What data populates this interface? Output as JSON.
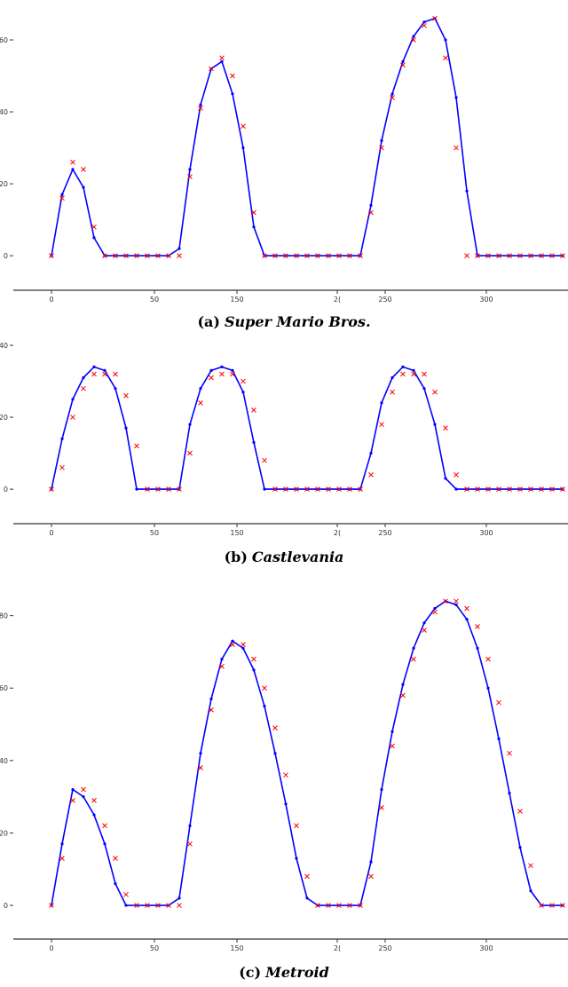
{
  "chart_data": [
    {
      "type": "line",
      "caption_label": "(a)",
      "caption_title": "Super Mario Bros.",
      "xtick_labels": [
        "0",
        "50",
        "150",
        "2(",
        "250",
        "300"
      ],
      "ylim": [
        -9.6,
        70
      ],
      "yticks": [
        0,
        20,
        40,
        60
      ],
      "series": [
        {
          "color": "#0000ff",
          "marker": "dot",
          "values": [
            0,
            17,
            24,
            19,
            5,
            0,
            0,
            0,
            0,
            0,
            0,
            0,
            2,
            24,
            42,
            52,
            54,
            45,
            30,
            8,
            0,
            0,
            0,
            0,
            0,
            0,
            0,
            0,
            0,
            0,
            14,
            32,
            45,
            54,
            61,
            65,
            66,
            60,
            44,
            18,
            0,
            0,
            0,
            0,
            0,
            0,
            0,
            0,
            0
          ]
        },
        {
          "color": "#ff0000",
          "marker": "x",
          "values": [
            0,
            16,
            26,
            24,
            8,
            0,
            0,
            0,
            0,
            0,
            0,
            0,
            0,
            22,
            41,
            52,
            55,
            50,
            36,
            12,
            0,
            0,
            0,
            0,
            0,
            0,
            0,
            0,
            0,
            0,
            12,
            30,
            44,
            53,
            60,
            64,
            66,
            55,
            30,
            0,
            0,
            0,
            0,
            0,
            0,
            0,
            0,
            0,
            0
          ]
        }
      ]
    },
    {
      "type": "line",
      "caption_label": "(b)",
      "caption_title": "Castlevania",
      "xtick_labels": [
        "0",
        "50",
        "150",
        "2(",
        "250",
        "300"
      ],
      "ylim": [
        -9.6,
        41
      ],
      "yticks": [
        0,
        20,
        40
      ],
      "series": [
        {
          "color": "#0000ff",
          "marker": "dot",
          "values": [
            0,
            14,
            25,
            31,
            34,
            33,
            28,
            17,
            0,
            0,
            0,
            0,
            0,
            18,
            28,
            33,
            34,
            33,
            27,
            13,
            0,
            0,
            0,
            0,
            0,
            0,
            0,
            0,
            0,
            0,
            10,
            24,
            31,
            34,
            33,
            28,
            18,
            3,
            0,
            0,
            0,
            0,
            0,
            0,
            0,
            0,
            0,
            0,
            0
          ]
        },
        {
          "color": "#ff0000",
          "marker": "x",
          "values": [
            0,
            6,
            20,
            28,
            32,
            32,
            32,
            26,
            12,
            0,
            0,
            0,
            0,
            10,
            24,
            31,
            32,
            32,
            30,
            22,
            8,
            0,
            0,
            0,
            0,
            0,
            0,
            0,
            0,
            0,
            4,
            18,
            27,
            32,
            32,
            32,
            27,
            17,
            4,
            0,
            0,
            0,
            0,
            0,
            0,
            0,
            0,
            0,
            0
          ]
        }
      ]
    },
    {
      "type": "line",
      "caption_label": "(c)",
      "caption_title": "Metroid",
      "xtick_labels": [
        "0",
        "50",
        "150",
        "2(",
        "250",
        "300"
      ],
      "ylim": [
        -9.3,
        88
      ],
      "yticks": [
        0,
        20,
        40,
        60,
        80
      ],
      "series": [
        {
          "color": "#0000ff",
          "marker": "dot",
          "values": [
            0,
            17,
            32,
            30,
            25,
            17,
            6,
            0,
            0,
            0,
            0,
            0,
            2,
            22,
            42,
            57,
            68,
            73,
            71,
            65,
            55,
            42,
            28,
            13,
            2,
            0,
            0,
            0,
            0,
            0,
            12,
            32,
            48,
            61,
            71,
            78,
            82,
            84,
            83,
            79,
            71,
            60,
            46,
            31,
            16,
            4,
            0,
            0,
            0
          ]
        },
        {
          "color": "#ff0000",
          "marker": "x",
          "values": [
            0,
            13,
            29,
            32,
            29,
            22,
            13,
            3,
            0,
            0,
            0,
            0,
            0,
            17,
            38,
            54,
            66,
            72,
            72,
            68,
            60,
            49,
            36,
            22,
            8,
            0,
            0,
            0,
            0,
            0,
            8,
            27,
            44,
            58,
            68,
            76,
            81,
            84,
            84,
            82,
            77,
            68,
            56,
            42,
            26,
            11,
            0,
            0,
            0
          ]
        }
      ]
    }
  ]
}
